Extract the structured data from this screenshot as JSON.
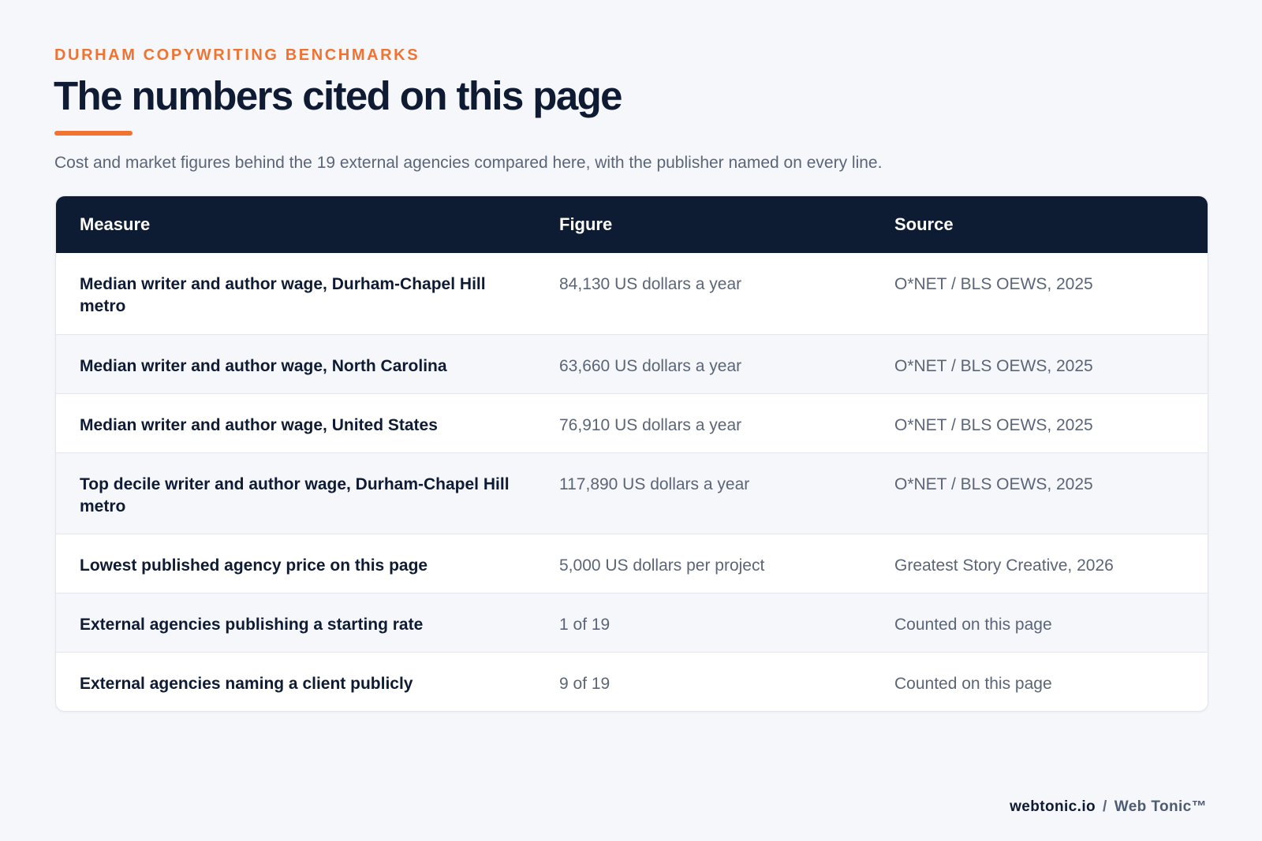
{
  "header": {
    "eyebrow": "DURHAM COPYWRITING BENCHMARKS",
    "title": "The numbers cited on this page",
    "lede": "Cost and market figures behind the 19 external agencies compared here, with the publisher named on every line."
  },
  "table": {
    "columns": [
      "Measure",
      "Figure",
      "Source"
    ],
    "rows": [
      {
        "measure": "Median writer and author wage, Durham-Chapel Hill metro",
        "figure": "84,130 US dollars a year",
        "source": "O*NET / BLS OEWS, 2025"
      },
      {
        "measure": "Median writer and author wage, North Carolina",
        "figure": "63,660 US dollars a year",
        "source": "O*NET / BLS OEWS, 2025"
      },
      {
        "measure": "Median writer and author wage, United States",
        "figure": "76,910 US dollars a year",
        "source": "O*NET / BLS OEWS, 2025"
      },
      {
        "measure": "Top decile writer and author wage, Durham-Chapel Hill metro",
        "figure": "117,890 US dollars a year",
        "source": "O*NET / BLS OEWS, 2025"
      },
      {
        "measure": "Lowest published agency price on this page",
        "figure": "5,000 US dollars per project",
        "source": "Greatest Story Creative, 2026"
      },
      {
        "measure": "External agencies publishing a starting rate",
        "figure": "1 of 19",
        "source": "Counted on this page"
      },
      {
        "measure": "External agencies naming a client publicly",
        "figure": "9 of 19",
        "source": "Counted on this page"
      }
    ]
  },
  "footer": {
    "domain": "webtonic.io",
    "separator": "/",
    "brand": "Web Tonic™"
  },
  "colors": {
    "accent": "#f07332",
    "header_bg": "#0d1b33",
    "page_bg": "#f5f7fa",
    "text_dark": "#0f1b33",
    "text_muted": "#5b6577"
  }
}
